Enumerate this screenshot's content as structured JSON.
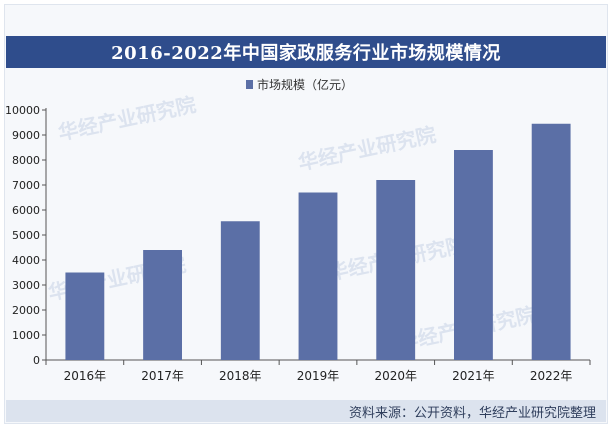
{
  "chart_data": {
    "type": "bar",
    "title": "2016-2022年中国家政服务行业市场规模情况",
    "legend": {
      "label": "市场规模（亿元）",
      "placement": "top"
    },
    "categories": [
      "2016年",
      "2017年",
      "2018年",
      "2019年",
      "2020年",
      "2021年",
      "2022年"
    ],
    "series": [
      {
        "name": "市场规模（亿元）",
        "values": [
          3500,
          4400,
          5550,
          6700,
          7200,
          8400,
          9450
        ]
      }
    ],
    "yticks": [
      "0",
      "1000",
      "2000",
      "3000",
      "4000",
      "5000",
      "6000",
      "7000",
      "8000",
      "9000",
      "10000"
    ],
    "ylim": [
      0,
      10000
    ],
    "grid": false,
    "bar_color": "#5b6fa6",
    "axis_color": "#555555"
  },
  "source": "资料来源：公开资料，华经产业研究院整理",
  "watermark": "华经产业研究院"
}
